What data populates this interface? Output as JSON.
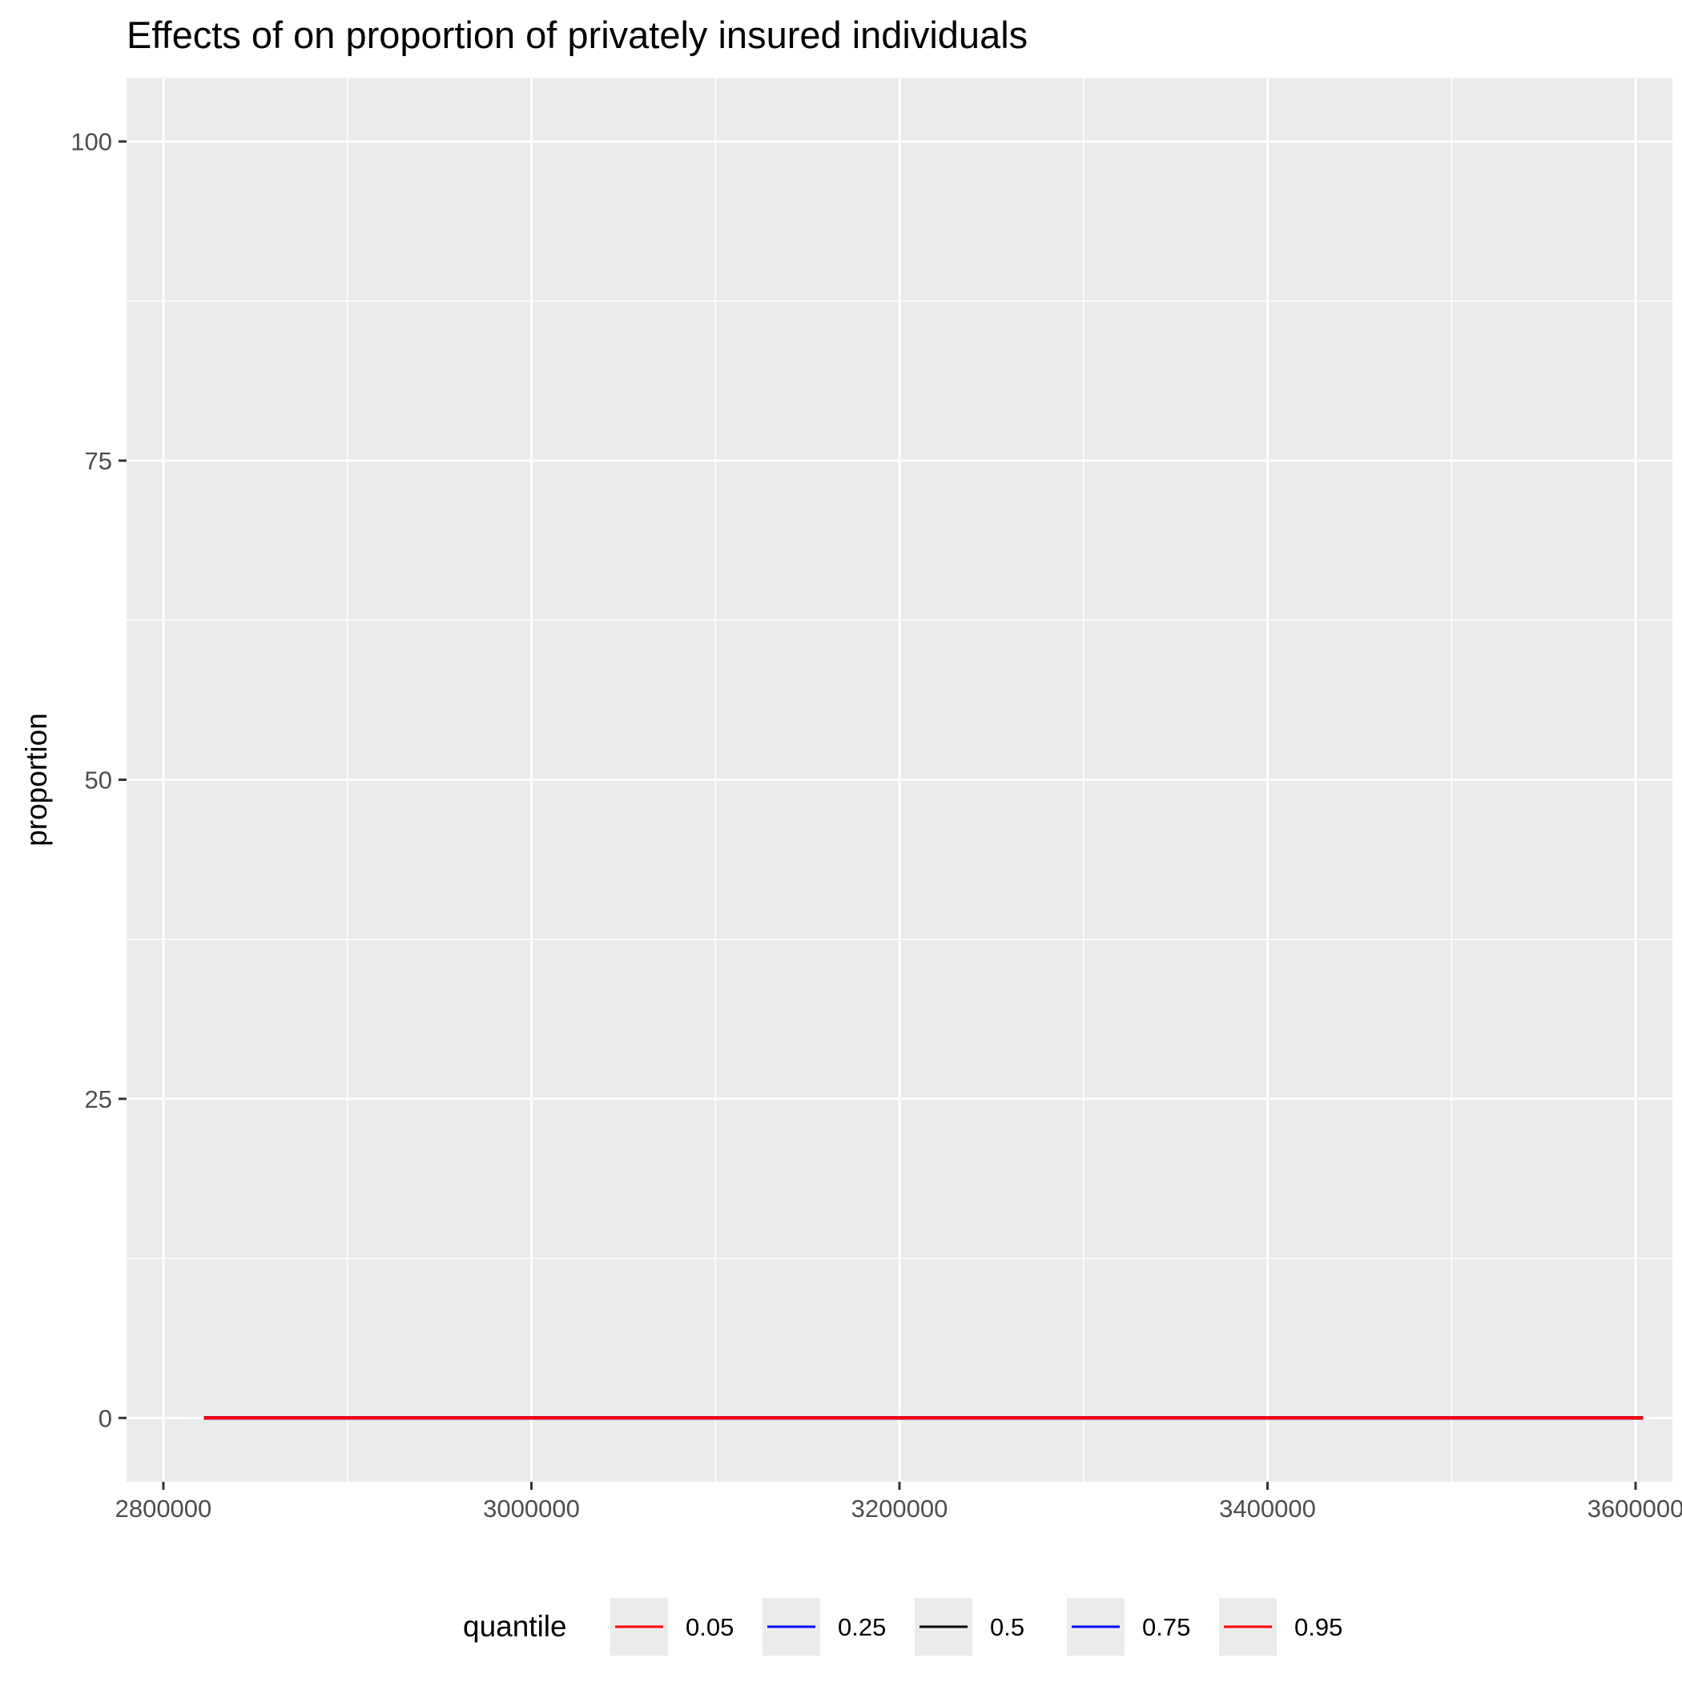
{
  "chart_data": {
    "type": "line",
    "title": "Effects of  on proportion of privately insured individuals",
    "xlabel": "",
    "ylabel": "proportion",
    "xlim": [
      2780000,
      3620000
    ],
    "ylim": [
      -5,
      105
    ],
    "x_ticks": [
      2800000,
      3000000,
      3200000,
      3400000,
      3600000
    ],
    "x_tick_labels": [
      "2800000",
      "3000000",
      "3200000",
      "3400000",
      "3600000"
    ],
    "y_ticks": [
      0,
      25,
      50,
      75,
      100
    ],
    "y_tick_labels": [
      "0",
      "25",
      "50",
      "75",
      "100"
    ],
    "grid": true,
    "legend_title": "quantile",
    "legend_position": "bottom",
    "x": [
      2822000,
      3604000
    ],
    "series": [
      {
        "name": "0.05",
        "color": "#ff0000",
        "values": [
          0,
          0
        ]
      },
      {
        "name": "0.25",
        "color": "#0000ff",
        "values": [
          0,
          0
        ]
      },
      {
        "name": "0.5",
        "color": "#000000",
        "values": [
          0,
          0
        ]
      },
      {
        "name": "0.75",
        "color": "#0000ff",
        "values": [
          0,
          0
        ]
      },
      {
        "name": "0.95",
        "color": "#ff0000",
        "values": [
          0,
          0
        ]
      }
    ]
  }
}
